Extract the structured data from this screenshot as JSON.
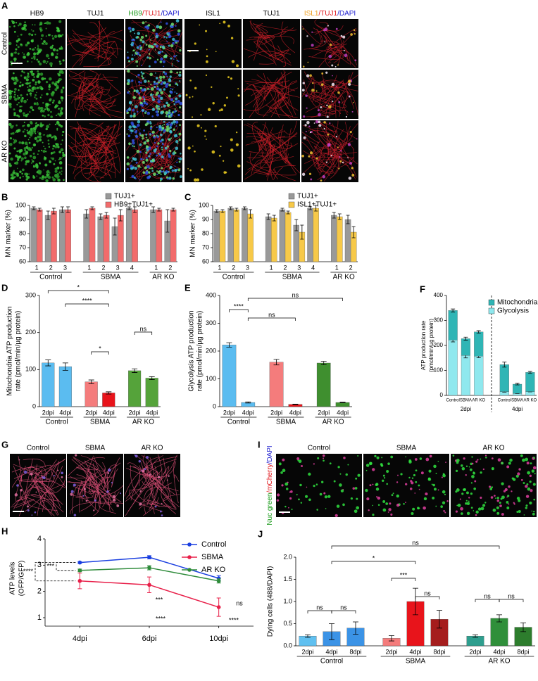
{
  "image_panels": [
    {
      "letter": "A",
      "columns": [
        [
          {
            "text": "HB9",
            "color": "#000000"
          }
        ],
        [
          {
            "text": "TUJ1",
            "color": "#000000"
          }
        ],
        [
          {
            "text": "HB9",
            "color": "#1a9a1a"
          },
          {
            "text": "/TUJ1",
            "color": "#e0161b"
          },
          {
            "text": "/DAPI",
            "color": "#2020d0"
          }
        ],
        [
          {
            "text": "ISL1",
            "color": "#000000"
          }
        ],
        [
          {
            "text": "TUJ1",
            "color": "#000000"
          }
        ],
        [
          {
            "text": "ISL1",
            "color": "#f0a020"
          },
          {
            "text": "/TUJ1",
            "color": "#e0161b"
          },
          {
            "text": "/DAPI",
            "color": "#2020d0"
          }
        ]
      ],
      "rows": [
        "Control",
        "SBMA",
        "AR KO"
      ]
    },
    {
      "letter": "G",
      "columns": [
        "Control",
        "SBMA",
        "AR KO"
      ]
    },
    {
      "letter": "I",
      "columns": [
        "Control",
        "SBMA",
        "AR KO"
      ],
      "side_label": [
        {
          "text": "Nuc green",
          "color": "#1a9a1a"
        },
        {
          "text": "/mCherry",
          "color": "#e0161b"
        },
        {
          "text": "/DAPI",
          "color": "#2020d0"
        }
      ]
    }
  ],
  "chart_data": [
    {
      "letter": "B",
      "type": "bar",
      "ylabel": "MN marker (%)",
      "groups": [
        {
          "name": "Control",
          "categories": [
            "1",
            "2",
            "3"
          ]
        },
        {
          "name": "SBMA",
          "categories": [
            "1",
            "2",
            "3",
            "4"
          ]
        },
        {
          "name": "AR KO",
          "categories": [
            "1",
            "2"
          ]
        }
      ],
      "series": [
        {
          "name": "TUJ1+",
          "color": "#999999",
          "values": [
            98,
            93,
            97,
            94,
            92,
            85,
            98,
            97,
            89
          ],
          "errors": [
            1,
            3,
            2,
            3,
            2,
            6,
            1,
            2,
            8
          ]
        },
        {
          "name": "HB9+TUJ1+",
          "color": "#f26b6b",
          "values": [
            97,
            96,
            97,
            98,
            93,
            93,
            97,
            97,
            97
          ],
          "errors": [
            1,
            2,
            2,
            1,
            2,
            4,
            2,
            1,
            1
          ]
        }
      ],
      "ylim": [
        60,
        100
      ],
      "yticks": [
        60,
        70,
        80,
        90,
        100
      ],
      "legend": "upper right"
    },
    {
      "letter": "C",
      "type": "bar",
      "ylabel": "MN marker (%)",
      "groups": [
        {
          "name": "Control",
          "categories": [
            "1",
            "2",
            "3"
          ]
        },
        {
          "name": "SBMA",
          "categories": [
            "1",
            "2",
            "3",
            "4"
          ]
        },
        {
          "name": "AR KO",
          "categories": [
            "1",
            "2"
          ]
        }
      ],
      "series": [
        {
          "name": "TUJ1+",
          "color": "#999999",
          "values": [
            96,
            98,
            98,
            92,
            97,
            86,
            98,
            93,
            90
          ],
          "errors": [
            1,
            1,
            1,
            2,
            1,
            4,
            1,
            2,
            3
          ]
        },
        {
          "name": "ISL1+TUJ1+",
          "color": "#f7c948",
          "values": [
            96,
            97,
            94,
            91,
            95,
            81,
            98,
            92,
            81
          ],
          "errors": [
            1,
            1,
            3,
            2,
            1,
            5,
            2,
            2,
            4
          ]
        }
      ],
      "ylim": [
        60,
        100
      ],
      "yticks": [
        60,
        70,
        80,
        90,
        100
      ],
      "legend": "upper right"
    },
    {
      "letter": "D",
      "type": "bar",
      "ylabel": [
        "Mitochondria  ATP production",
        "rate (pmol/min/µg protein)"
      ],
      "groups": [
        {
          "name": "Control",
          "categories": [
            "2dpi",
            "4dpi"
          ]
        },
        {
          "name": "SBMA",
          "categories": [
            "2dpi",
            "4dpi"
          ]
        },
        {
          "name": "AR KO",
          "categories": [
            "2dpi",
            "4dpi"
          ]
        }
      ],
      "values": [
        118,
        108,
        67,
        37,
        97,
        77
      ],
      "errors": [
        8,
        10,
        5,
        3,
        5,
        4
      ],
      "colors": [
        "#5bbcf0",
        "#5bbcf0",
        "#f47c7c",
        "#e8141b",
        "#55a33a",
        "#55a33a"
      ],
      "ylim": [
        0,
        300
      ],
      "yticks": [
        0,
        100,
        200,
        300
      ],
      "annotations": [
        "*",
        "****",
        "*",
        "ns"
      ]
    },
    {
      "letter": "E",
      "type": "bar",
      "ylabel": [
        "Glycolysis ATP production",
        "rate (pmol/min/µg protein)"
      ],
      "groups": [
        {
          "name": "Control",
          "categories": [
            "2dpi",
            "4dpi"
          ]
        },
        {
          "name": "SBMA",
          "categories": [
            "2dpi",
            "4dpi"
          ]
        },
        {
          "name": "AR KO",
          "categories": [
            "2dpi",
            "4dpi"
          ]
        }
      ],
      "values": [
        222,
        15,
        160,
        8,
        157,
        15
      ],
      "errors": [
        8,
        2,
        10,
        1,
        6,
        1
      ],
      "colors": [
        "#5bbcf0",
        "#5bbcf0",
        "#f47c7c",
        "#e8141b",
        "#3f8f2f",
        "#3f8f2f"
      ],
      "ylim": [
        0,
        400
      ],
      "yticks": [
        0,
        100,
        200,
        300,
        400
      ],
      "annotations": [
        "****",
        "ns",
        "ns"
      ]
    },
    {
      "letter": "F",
      "type": "stacked_bar",
      "ylabel": [
        "ATP production rate",
        "(pmol/min/µg protein)"
      ],
      "groups": [
        {
          "name": "2dpi",
          "categories": [
            "Control",
            "SBMA",
            "AR KO"
          ]
        },
        {
          "name": "4dpi",
          "categories": [
            "Control",
            "SBMA",
            "AR KO"
          ]
        }
      ],
      "series": [
        {
          "name": "Mitochondria",
          "color": "#2fb5b5",
          "values": [
            118,
            67,
            97,
            108,
            37,
            77
          ],
          "errors": [
            6,
            6,
            5,
            10,
            3,
            4
          ]
        },
        {
          "name": "Glycolysis",
          "color": "#8fe8ee",
          "values": [
            222,
            160,
            157,
            15,
            8,
            15
          ],
          "errors": [
            8,
            10,
            6,
            2,
            1,
            1
          ]
        }
      ],
      "ylim": [
        0,
        400
      ],
      "yticks": [
        0,
        100,
        200,
        300,
        400
      ],
      "legend": "upper right"
    },
    {
      "letter": "H",
      "type": "line",
      "ylabel": [
        "ATP levels",
        "(OFP/GFP)"
      ],
      "categories": [
        "4dpi",
        "6dpi",
        "10dpi"
      ],
      "series": [
        {
          "name": "Control",
          "color": "#1a3fe0",
          "values": [
            3.1,
            3.3,
            2.5
          ],
          "errors": [
            0.03,
            0.06,
            0.1
          ]
        },
        {
          "name": "SBMA",
          "color": "#e8204a",
          "values": [
            2.4,
            2.25,
            1.4
          ],
          "errors": [
            0.3,
            0.3,
            0.35
          ]
        },
        {
          "name": "AR KO",
          "color": "#2e8b3a",
          "values": [
            2.8,
            2.9,
            2.4
          ],
          "errors": [
            0.05,
            0.08,
            0.08
          ]
        }
      ],
      "ylim": [
        1,
        4
      ],
      "yticks": [
        1,
        2,
        3,
        4
      ],
      "legend": "upper right",
      "annotations": [
        "****",
        "***",
        "***",
        "****",
        "****",
        "ns"
      ]
    },
    {
      "letter": "J",
      "type": "bar",
      "ylabel": "Dying cells (488/DAPI)",
      "groups": [
        {
          "name": "Control",
          "categories": [
            "2dpi",
            "4dpi",
            "8dpi"
          ]
        },
        {
          "name": "SBMA",
          "categories": [
            "2dpi",
            "4dpi",
            "8dpi"
          ]
        },
        {
          "name": "AR KO",
          "categories": [
            "2dpi",
            "4dpi",
            "8dpi"
          ]
        }
      ],
      "values": [
        0.22,
        0.32,
        0.4,
        0.17,
        1.0,
        0.6,
        0.22,
        0.62,
        0.42
      ],
      "errors": [
        0.03,
        0.18,
        0.14,
        0.06,
        0.3,
        0.2,
        0.03,
        0.08,
        0.1
      ],
      "colors": [
        "#60c0f0",
        "#3b93e6",
        "#3b93e6",
        "#f47c7c",
        "#e8141b",
        "#a51d1d",
        "#2e9e8e",
        "#2f8f3a",
        "#2d7d2d"
      ],
      "ylim": [
        0,
        2
      ],
      "yticks": [
        {
          "value": 0,
          "label": "0.0"
        },
        0.5,
        {
          "value": 1,
          "label": "1.0"
        },
        1.5,
        {
          "value": 2,
          "label": "2.0"
        }
      ],
      "annotations": [
        "ns",
        "*",
        "***",
        "ns",
        "ns",
        "ns",
        "ns",
        "ns"
      ]
    }
  ]
}
